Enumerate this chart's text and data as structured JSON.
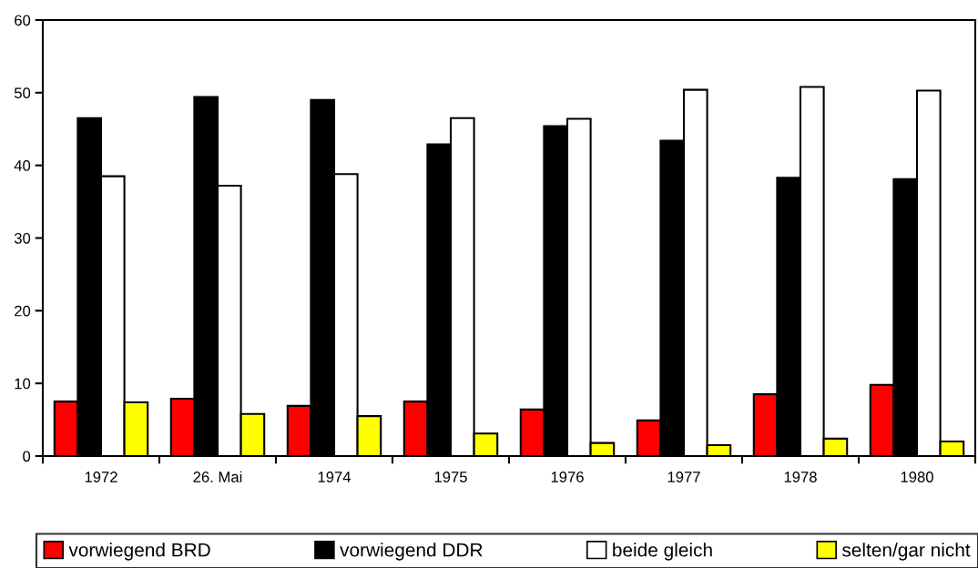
{
  "chart_data": {
    "type": "bar",
    "categories": [
      "1972",
      "26. Mai",
      "1974",
      "1975",
      "1976",
      "1977",
      "1978",
      "1980"
    ],
    "series": [
      {
        "name": "vorwiegend BRD",
        "color": "#ff0000",
        "values": [
          7.5,
          7.9,
          6.9,
          7.5,
          6.4,
          4.9,
          8.5,
          9.8
        ]
      },
      {
        "name": "vorwiegend DDR",
        "color": "#000000",
        "values": [
          46.5,
          49.4,
          49.0,
          42.9,
          45.4,
          43.4,
          38.3,
          38.1
        ]
      },
      {
        "name": "beide gleich",
        "color": "#ffffff",
        "values": [
          38.5,
          37.2,
          38.8,
          46.5,
          46.4,
          50.4,
          50.8,
          50.3
        ]
      },
      {
        "name": "selten/gar nicht",
        "color": "#ffff00",
        "values": [
          7.4,
          5.8,
          5.5,
          3.1,
          1.8,
          1.5,
          2.4,
          2.0
        ]
      }
    ],
    "ylim": [
      0,
      60
    ],
    "yticks": [
      0,
      10,
      20,
      30,
      40,
      50,
      60
    ],
    "grid": false,
    "legend": "bottom"
  }
}
